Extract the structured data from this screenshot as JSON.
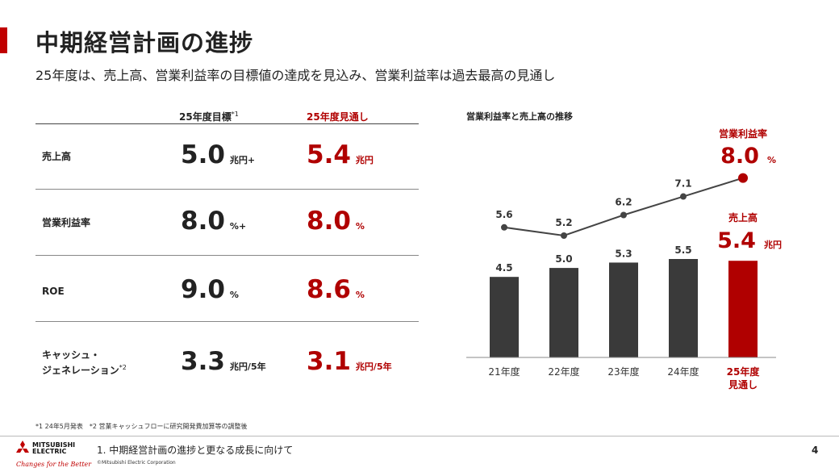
{
  "header": {
    "title": "中期経営計画の進捗",
    "subtitle": "25年度は、売上高、営業利益率の目標値の達成を見込み、営業利益率は過去最高の見通し"
  },
  "table": {
    "col_target": "25年度目標",
    "col_target_note": "*1",
    "col_forecast": "25年度見通し",
    "rows": [
      {
        "label": "売上高",
        "label_note": "",
        "target": "5.0",
        "target_unit": "兆円+",
        "forecast": "5.4",
        "forecast_unit": "兆円"
      },
      {
        "label": "営業利益率",
        "label_note": "",
        "target": "8.0",
        "target_unit": "%+",
        "forecast": "8.0",
        "forecast_unit": "%"
      },
      {
        "label": "ROE",
        "label_note": "",
        "target": "9.0",
        "target_unit": "%",
        "forecast": "8.6",
        "forecast_unit": "%"
      },
      {
        "label": "キャッシュ・",
        "label2": "ジェネレーション",
        "label_note": "*2",
        "target": "3.3",
        "target_unit": "兆円/5年",
        "forecast": "3.1",
        "forecast_unit": "兆円/5年"
      }
    ]
  },
  "chart_data": {
    "type": "bar+line",
    "title": "営業利益率と売上高の推移",
    "categories": [
      "21年度",
      "22年度",
      "23年度",
      "24年度",
      "25年度"
    ],
    "last_category_line2": "見通し",
    "series": [
      {
        "name": "売上高",
        "type": "bar",
        "values": [
          4.5,
          5.0,
          5.3,
          5.5,
          5.4
        ],
        "unit": "兆円"
      },
      {
        "name": "営業利益率",
        "type": "line",
        "values": [
          5.6,
          5.2,
          6.2,
          7.1,
          8.0
        ],
        "unit": "%"
      }
    ],
    "callouts": {
      "margin_label": "営業利益率",
      "margin_value": "8.0",
      "margin_unit": "%",
      "sales_label": "売上高",
      "sales_value": "5.4",
      "sales_unit": "兆円"
    },
    "colors": {
      "bar": "#3a3a3a",
      "highlight": "#b00000",
      "line": "#444444"
    }
  },
  "footer": {
    "footnote": "*1 24年5月発表　*2 営業キャッシュフローに研究開発費加算等の調整後",
    "title": "1. 中期経営計画の進捗と更なる成長に向けて",
    "copyright": "©Mitsubishi Electric Corporation",
    "page": "4",
    "logo_line1": "MITSUBISHI",
    "logo_line2": "ELECTRIC",
    "tagline": "Changes for the Better"
  }
}
